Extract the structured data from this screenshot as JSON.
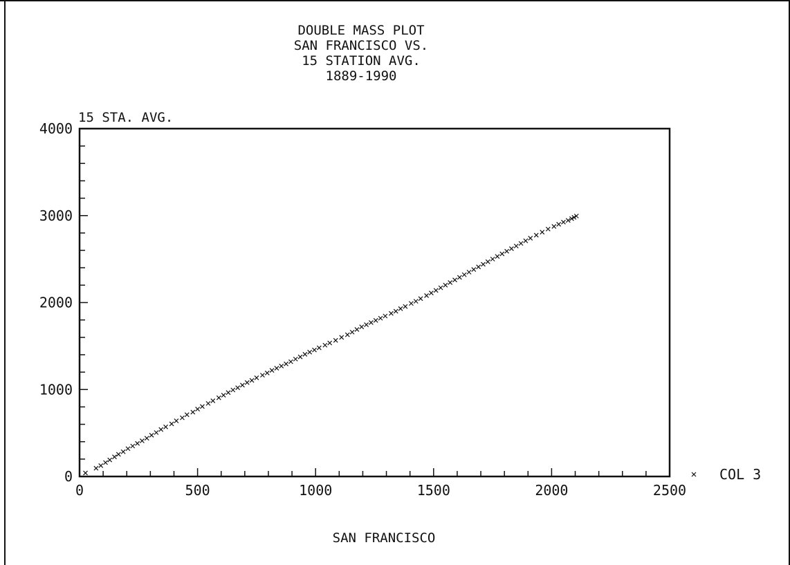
{
  "chart_data": {
    "type": "scatter",
    "title_lines": [
      "DOUBLE MASS PLOT",
      "SAN FRANCISCO VS.",
      "15 STATION AVG.",
      "1889-1990"
    ],
    "xlabel": "SAN FRANCISCO",
    "ylabel": "15 STA. AVG.",
    "xlim": [
      0,
      2500
    ],
    "ylim": [
      0,
      4000
    ],
    "x_ticks": [
      0,
      500,
      1000,
      1500,
      2000,
      2500
    ],
    "y_ticks": [
      0,
      1000,
      2000,
      3000,
      4000
    ],
    "x_tick_labels": [
      "0",
      "500",
      "1000",
      "1500",
      "2000",
      "2500"
    ],
    "y_tick_labels": [
      "0",
      "1000",
      "2000",
      "3000",
      "4000"
    ],
    "x_minor_step": 100,
    "y_minor_step": 200,
    "grid": false,
    "legend_position": "right",
    "series": [
      {
        "name": "COL 3",
        "marker": "x",
        "color": "#111111",
        "points": [
          [
            25,
            40
          ],
          [
            70,
            95
          ],
          [
            90,
            125
          ],
          [
            110,
            160
          ],
          [
            128,
            190
          ],
          [
            148,
            225
          ],
          [
            165,
            255
          ],
          [
            185,
            285
          ],
          [
            205,
            320
          ],
          [
            225,
            350
          ],
          [
            245,
            380
          ],
          [
            265,
            410
          ],
          [
            285,
            440
          ],
          [
            305,
            475
          ],
          [
            325,
            505
          ],
          [
            345,
            540
          ],
          [
            365,
            570
          ],
          [
            390,
            605
          ],
          [
            410,
            640
          ],
          [
            435,
            675
          ],
          [
            455,
            710
          ],
          [
            480,
            740
          ],
          [
            500,
            775
          ],
          [
            520,
            805
          ],
          [
            545,
            840
          ],
          [
            565,
            870
          ],
          [
            590,
            905
          ],
          [
            610,
            935
          ],
          [
            630,
            965
          ],
          [
            650,
            995
          ],
          [
            670,
            1020
          ],
          [
            690,
            1050
          ],
          [
            710,
            1080
          ],
          [
            730,
            1105
          ],
          [
            750,
            1135
          ],
          [
            775,
            1165
          ],
          [
            795,
            1190
          ],
          [
            815,
            1220
          ],
          [
            835,
            1245
          ],
          [
            855,
            1270
          ],
          [
            875,
            1295
          ],
          [
            895,
            1320
          ],
          [
            915,
            1350
          ],
          [
            935,
            1375
          ],
          [
            955,
            1405
          ],
          [
            975,
            1430
          ],
          [
            995,
            1455
          ],
          [
            1015,
            1480
          ],
          [
            1040,
            1510
          ],
          [
            1060,
            1535
          ],
          [
            1085,
            1565
          ],
          [
            1110,
            1600
          ],
          [
            1135,
            1630
          ],
          [
            1155,
            1660
          ],
          [
            1175,
            1690
          ],
          [
            1195,
            1720
          ],
          [
            1215,
            1745
          ],
          [
            1235,
            1770
          ],
          [
            1255,
            1795
          ],
          [
            1275,
            1820
          ],
          [
            1295,
            1845
          ],
          [
            1320,
            1875
          ],
          [
            1340,
            1900
          ],
          [
            1360,
            1930
          ],
          [
            1380,
            1955
          ],
          [
            1405,
            1990
          ],
          [
            1425,
            2015
          ],
          [
            1445,
            2045
          ],
          [
            1470,
            2080
          ],
          [
            1490,
            2110
          ],
          [
            1510,
            2140
          ],
          [
            1530,
            2170
          ],
          [
            1550,
            2200
          ],
          [
            1570,
            2230
          ],
          [
            1590,
            2260
          ],
          [
            1610,
            2290
          ],
          [
            1630,
            2320
          ],
          [
            1650,
            2350
          ],
          [
            1670,
            2380
          ],
          [
            1690,
            2410
          ],
          [
            1710,
            2440
          ],
          [
            1730,
            2470
          ],
          [
            1750,
            2500
          ],
          [
            1770,
            2530
          ],
          [
            1790,
            2560
          ],
          [
            1810,
            2590
          ],
          [
            1830,
            2620
          ],
          [
            1850,
            2650
          ],
          [
            1870,
            2680
          ],
          [
            1890,
            2710
          ],
          [
            1910,
            2740
          ],
          [
            1935,
            2775
          ],
          [
            1960,
            2810
          ],
          [
            1985,
            2845
          ],
          [
            2010,
            2875
          ],
          [
            2030,
            2900
          ],
          [
            2050,
            2925
          ],
          [
            2070,
            2945
          ],
          [
            2085,
            2965
          ],
          [
            2095,
            2980
          ],
          [
            2105,
            2995
          ]
        ]
      }
    ]
  }
}
